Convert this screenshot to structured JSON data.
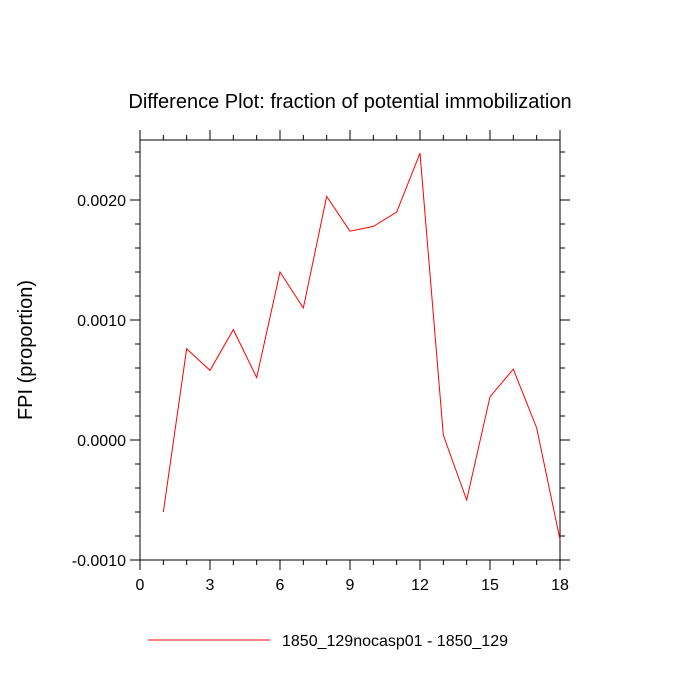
{
  "chart_data": {
    "type": "line",
    "title": "Difference Plot: fraction of potential immobilization",
    "xlabel": "",
    "ylabel": "FPI  (proportion)",
    "xlim": [
      0,
      18
    ],
    "ylim": [
      -0.001,
      0.0025
    ],
    "x_ticks": [
      0,
      3,
      6,
      9,
      12,
      15,
      18
    ],
    "x_tick_labels": [
      "0",
      "3",
      "6",
      "9",
      "12",
      "15",
      "18"
    ],
    "y_ticks": [
      -0.001,
      0.0,
      0.001,
      0.002
    ],
    "y_tick_labels": [
      "-0.0010",
      "0.0000",
      "0.0010",
      "0.0020"
    ],
    "x": [
      1,
      2,
      3,
      4,
      5,
      6,
      7,
      8,
      9,
      10,
      11,
      12,
      13,
      14,
      15,
      16,
      17,
      18
    ],
    "series": [
      {
        "name": "1850_129nocasp01 - 1850_129",
        "color": "#ff0000",
        "values": [
          -0.0006,
          0.00076,
          0.00058,
          0.00092,
          0.00052,
          0.0014,
          0.0011,
          0.00203,
          0.00174,
          0.00178,
          0.0019,
          0.00239,
          4e-05,
          -0.0005,
          0.00036,
          0.00059,
          0.0001,
          -0.00083
        ]
      }
    ],
    "grid": false,
    "legend_position": "bottom"
  }
}
